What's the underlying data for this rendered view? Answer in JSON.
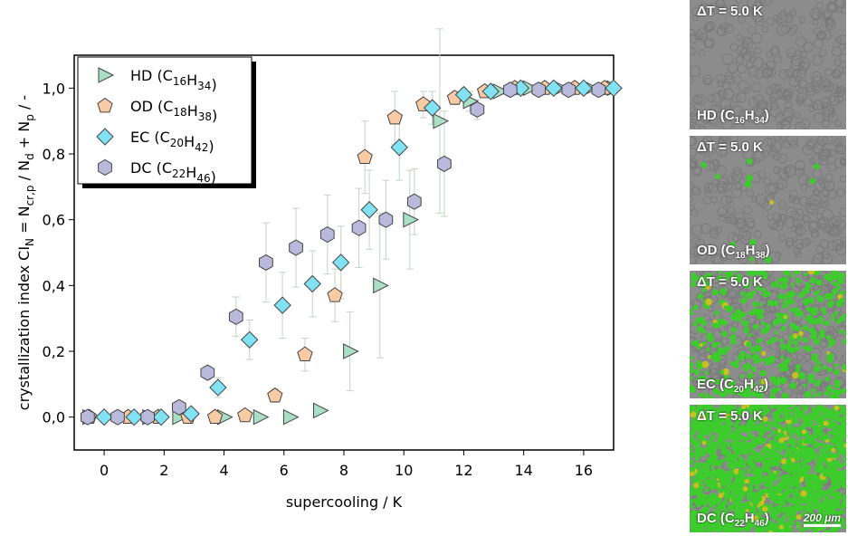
{
  "chart_data": {
    "type": "scatter",
    "ylabel": [
      "crystallization index CI",
      "N",
      " = N",
      "cr,p",
      " / N",
      "d",
      " + N",
      "p",
      " / -"
    ],
    "xlabel": "supercooling / K",
    "xlim": [
      -1,
      17
    ],
    "ylim": [
      -0.1,
      1.1
    ],
    "xticks": [
      0,
      2,
      4,
      6,
      8,
      10,
      12,
      14,
      16
    ],
    "yticks": [
      {
        "value": 0,
        "label": "0,0"
      },
      {
        "value": 0.2,
        "label": "0,2"
      },
      {
        "value": 0.4,
        "label": "0,4"
      },
      {
        "value": 0.6,
        "label": "0,6"
      },
      {
        "value": 0.8,
        "label": "0,8"
      },
      {
        "value": 1,
        "label": "1,0"
      }
    ],
    "legend": "upper-left",
    "series": [
      {
        "name": "HD (C16H34)",
        "marker": "triangle",
        "color": "#a9dfc4",
        "x": [
          -0.5,
          1.5,
          2.5,
          4,
          5.2,
          6.2,
          7.2,
          8.2,
          9.2,
          10.2,
          11.2,
          12.2,
          13.2,
          14.2,
          15.2,
          16.2,
          17
        ],
        "values": [
          0,
          0,
          0,
          0,
          0,
          0,
          0.02,
          0.2,
          0.4,
          0.6,
          0.9,
          0.96,
          0.99,
          1,
          1,
          1,
          1
        ],
        "errors": [
          0,
          0,
          0,
          0,
          0,
          0,
          0,
          0.12,
          0.22,
          0.15,
          0.28,
          0.03,
          0.01,
          0,
          0,
          0,
          0
        ]
      },
      {
        "name": "OD (C18H38)",
        "marker": "pentagon",
        "color": "#f8cba5",
        "x": [
          -0.5,
          0.8,
          1.8,
          2.8,
          3.7,
          4.7,
          5.7,
          6.7,
          7.7,
          8.7,
          9.7,
          10.65,
          11.7,
          12.7,
          13.7,
          14.7,
          15.7,
          16.7
        ],
        "values": [
          0,
          0,
          0,
          0,
          0,
          0.005,
          0.065,
          0.19,
          0.37,
          0.79,
          0.91,
          0.95,
          0.97,
          0.99,
          1,
          1,
          1,
          1
        ],
        "errors": [
          0,
          0,
          0,
          0,
          0,
          0,
          0.02,
          0.05,
          0.08,
          0.11,
          0.08,
          0.04,
          0.02,
          0.01,
          0,
          0,
          0,
          0
        ]
      },
      {
        "name": "EC (C20H42)",
        "marker": "diamond",
        "color": "#80e2f2",
        "x": [
          0,
          1,
          1.9,
          2.9,
          3.8,
          4.85,
          5.95,
          6.95,
          7.9,
          8.85,
          9.85,
          10.95,
          12,
          12.9,
          13.9,
          15,
          16,
          17
        ],
        "values": [
          0,
          0,
          0,
          0.01,
          0.09,
          0.235,
          0.34,
          0.405,
          0.47,
          0.63,
          0.82,
          0.94,
          0.98,
          0.99,
          1,
          1,
          1,
          1
        ],
        "errors": [
          0,
          0,
          0,
          0,
          0.03,
          0.06,
          0.1,
          0.1,
          0.11,
          0.12,
          0.1,
          0.05,
          0.02,
          0.01,
          0,
          0,
          0,
          0
        ]
      },
      {
        "name": "DC (C22H46)",
        "marker": "hexagon",
        "color": "#b9b9dc",
        "x": [
          -0.55,
          0.45,
          1.45,
          2.5,
          3.45,
          4.4,
          5.4,
          6.4,
          7.45,
          8.5,
          9.4,
          10.35,
          11.35,
          12.45,
          13.55,
          14.5,
          15.5,
          16.5
        ],
        "values": [
          0,
          0,
          0,
          0.03,
          0.135,
          0.305,
          0.47,
          0.515,
          0.555,
          0.575,
          0.6,
          0.655,
          0.77,
          0.935,
          0.995,
          0.995,
          0.995,
          0.995
        ],
        "errors": [
          0,
          0,
          0,
          0,
          0.02,
          0.06,
          0.12,
          0.12,
          0.12,
          0.12,
          0.12,
          0.1,
          0.16,
          0.03,
          0.01,
          0.01,
          0,
          0
        ]
      }
    ]
  },
  "micrographs": [
    {
      "condition": "ΔT = 5.0 K",
      "label": "HD (C16H34)"
    },
    {
      "condition": "ΔT = 5.0 K",
      "label": "OD (C18H38)"
    },
    {
      "condition": "ΔT = 5.0 K",
      "label": "EC (C20H42)"
    },
    {
      "condition": "ΔT = 5.0 K",
      "label": "DC (C22H46)",
      "scale_bar": "200 μm"
    }
  ]
}
